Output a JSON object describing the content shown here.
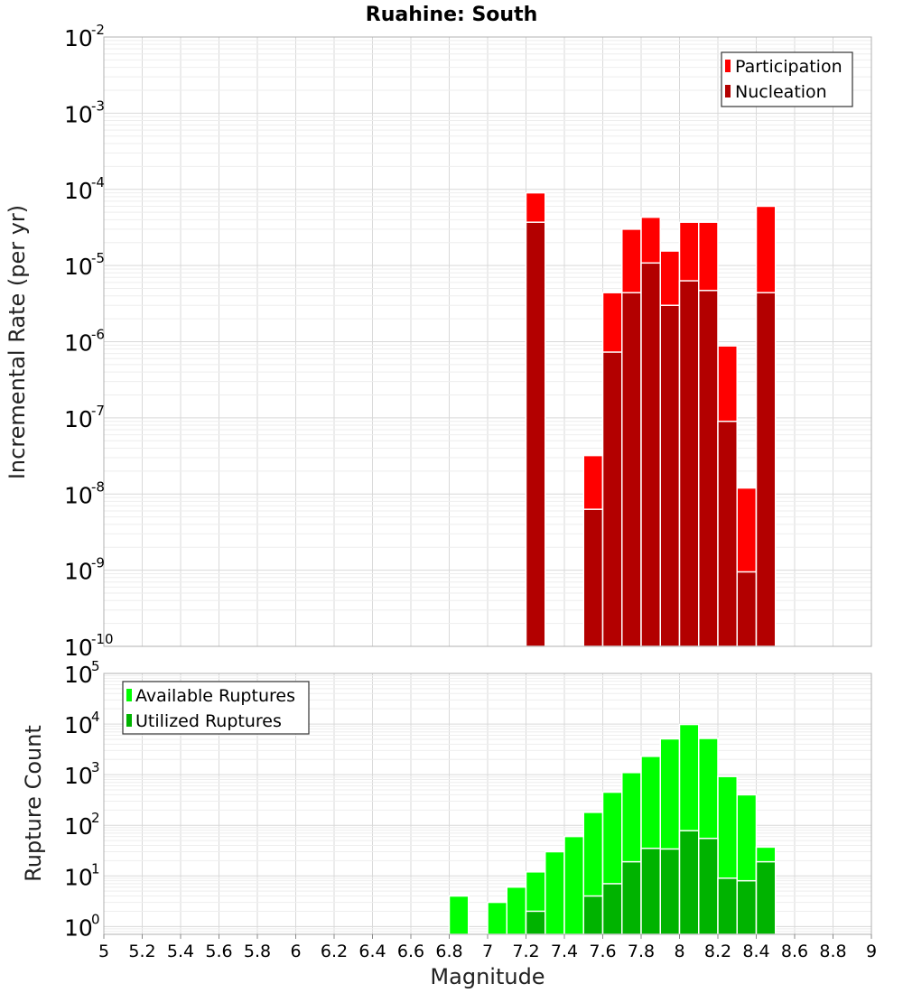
{
  "chart_data": [
    {
      "type": "bar",
      "title": "Ruahine: South",
      "xlabel": "",
      "ylabel": "Incremental Rate (per yr)",
      "yscale": "log",
      "ylim": [
        1e-10,
        0.01
      ],
      "xlim": [
        5,
        9
      ],
      "bin_width": 0.1,
      "grid": true,
      "legend_position": "top-right",
      "y_ticks": [
        {
          "base": "10",
          "exp": "-10",
          "value": 1e-10
        },
        {
          "base": "10",
          "exp": "-9",
          "value": 1e-09
        },
        {
          "base": "10",
          "exp": "-8",
          "value": 1e-08
        },
        {
          "base": "10",
          "exp": "-7",
          "value": 1e-07
        },
        {
          "base": "10",
          "exp": "-6",
          "value": 1e-06
        },
        {
          "base": "10",
          "exp": "-5",
          "value": 1e-05
        },
        {
          "base": "10",
          "exp": "-4",
          "value": 0.0001
        },
        {
          "base": "10",
          "exp": "-3",
          "value": 0.001
        },
        {
          "base": "10",
          "exp": "-2",
          "value": 0.01
        }
      ],
      "series": [
        {
          "name": "Participation",
          "color": "#ff0000",
          "points": [
            {
              "x": 7.25,
              "y": 9e-05
            },
            {
              "x": 7.55,
              "y": 3.2e-08
            },
            {
              "x": 7.65,
              "y": 4.4e-06
            },
            {
              "x": 7.75,
              "y": 3e-05
            },
            {
              "x": 7.85,
              "y": 4.3e-05
            },
            {
              "x": 7.95,
              "y": 1.55e-05
            },
            {
              "x": 8.05,
              "y": 3.7e-05
            },
            {
              "x": 8.15,
              "y": 3.7e-05
            },
            {
              "x": 8.25,
              "y": 8.8e-07
            },
            {
              "x": 8.35,
              "y": 1.2e-08
            },
            {
              "x": 8.45,
              "y": 6e-05
            }
          ]
        },
        {
          "name": "Nucleation",
          "color": "#b30000",
          "points": [
            {
              "x": 7.25,
              "y": 3.7e-05
            },
            {
              "x": 7.55,
              "y": 6.3e-09
            },
            {
              "x": 7.65,
              "y": 7.3e-07
            },
            {
              "x": 7.75,
              "y": 4.4e-06
            },
            {
              "x": 7.85,
              "y": 1.08e-05
            },
            {
              "x": 7.95,
              "y": 3e-06
            },
            {
              "x": 8.05,
              "y": 6.3e-06
            },
            {
              "x": 8.15,
              "y": 4.7e-06
            },
            {
              "x": 8.25,
              "y": 9e-08
            },
            {
              "x": 8.35,
              "y": 9.5e-10
            },
            {
              "x": 8.45,
              "y": 4.4e-06
            }
          ]
        }
      ]
    },
    {
      "type": "bar",
      "title": "",
      "xlabel": "Magnitude",
      "ylabel": "Rupture Count",
      "yscale": "log",
      "ylim": [
        0.7,
        100000.0
      ],
      "xlim": [
        5,
        9
      ],
      "bin_width": 0.1,
      "grid": true,
      "legend_position": "top-left",
      "x_ticks": [
        "5",
        "5.2",
        "5.4",
        "5.6",
        "5.8",
        "6",
        "6.2",
        "6.4",
        "6.6",
        "6.8",
        "7",
        "7.2",
        "7.4",
        "7.6",
        "7.8",
        "8",
        "8.2",
        "8.4",
        "8.6",
        "8.8",
        "9"
      ],
      "y_ticks": [
        {
          "base": "10",
          "exp": "0",
          "value": 1
        },
        {
          "base": "10",
          "exp": "1",
          "value": 10
        },
        {
          "base": "10",
          "exp": "2",
          "value": 100
        },
        {
          "base": "10",
          "exp": "3",
          "value": 1000
        },
        {
          "base": "10",
          "exp": "4",
          "value": 10000
        },
        {
          "base": "10",
          "exp": "5",
          "value": 100000
        }
      ],
      "series": [
        {
          "name": "Available Ruptures",
          "color": "#00ff00",
          "points": [
            {
              "x": 6.85,
              "y": 4
            },
            {
              "x": 7.05,
              "y": 3
            },
            {
              "x": 7.15,
              "y": 6
            },
            {
              "x": 7.25,
              "y": 12
            },
            {
              "x": 7.35,
              "y": 30
            },
            {
              "x": 7.45,
              "y": 60
            },
            {
              "x": 7.55,
              "y": 180
            },
            {
              "x": 7.65,
              "y": 450
            },
            {
              "x": 7.75,
              "y": 1100
            },
            {
              "x": 7.85,
              "y": 2300
            },
            {
              "x": 7.95,
              "y": 5100
            },
            {
              "x": 8.05,
              "y": 9800
            },
            {
              "x": 8.15,
              "y": 5200
            },
            {
              "x": 8.25,
              "y": 920
            },
            {
              "x": 8.35,
              "y": 400
            },
            {
              "x": 8.45,
              "y": 37
            }
          ]
        },
        {
          "name": "Utilized Ruptures",
          "color": "#00b300",
          "points": [
            {
              "x": 7.25,
              "y": 2
            },
            {
              "x": 7.55,
              "y": 4
            },
            {
              "x": 7.65,
              "y": 7
            },
            {
              "x": 7.75,
              "y": 19
            },
            {
              "x": 7.85,
              "y": 35
            },
            {
              "x": 7.95,
              "y": 34
            },
            {
              "x": 8.05,
              "y": 78
            },
            {
              "x": 8.15,
              "y": 55
            },
            {
              "x": 8.25,
              "y": 9
            },
            {
              "x": 8.35,
              "y": 8
            },
            {
              "x": 8.45,
              "y": 19
            }
          ]
        }
      ]
    }
  ]
}
